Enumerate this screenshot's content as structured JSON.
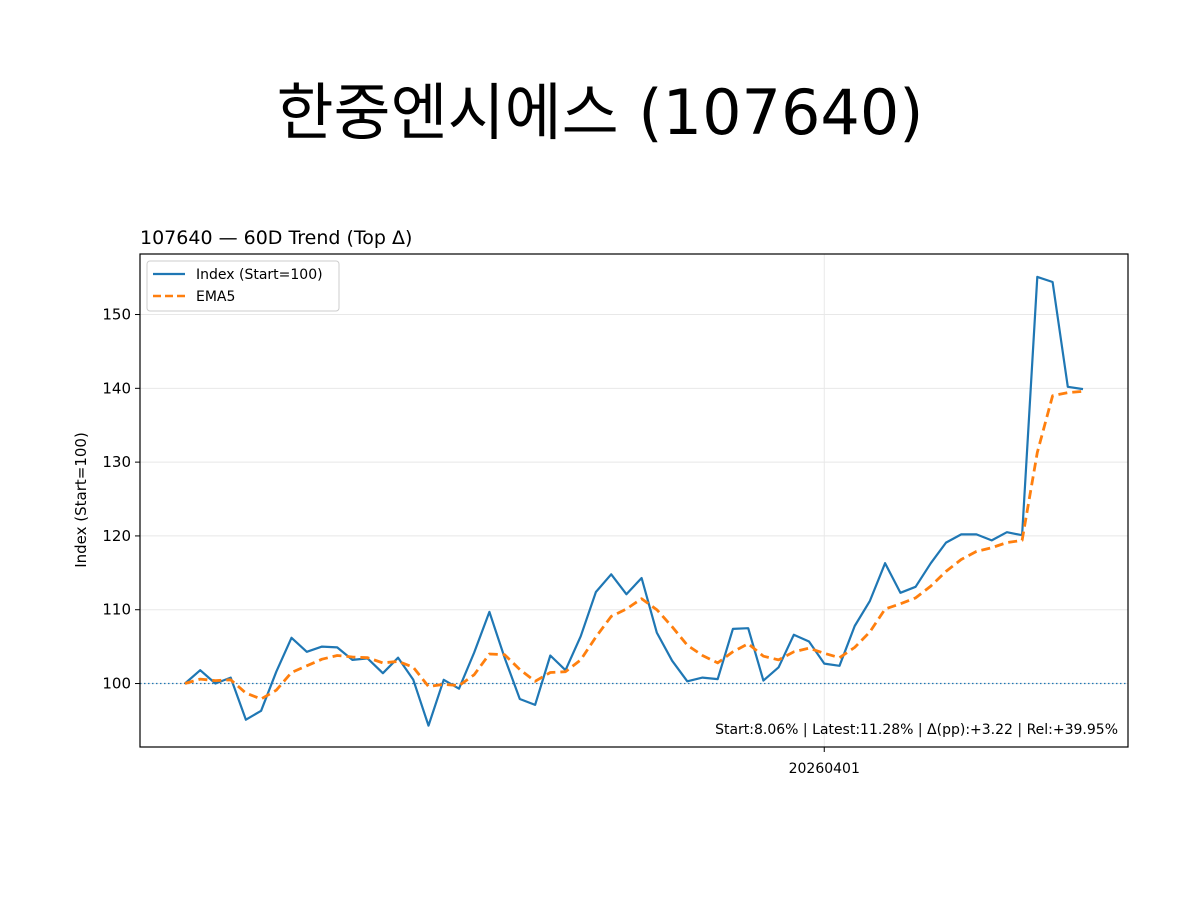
{
  "page": {
    "title": "한중엔시에스 (107640)"
  },
  "chart_data": {
    "type": "line",
    "title": "107640 — 60D Trend (Top Δ)",
    "xlabel": "",
    "ylabel": "Index (Start=100)",
    "ylim": [
      91.4,
      158.2
    ],
    "yticks": [
      100,
      110,
      120,
      130,
      140,
      150
    ],
    "xticks": [
      {
        "index": 42,
        "label": "20260401"
      }
    ],
    "grid": true,
    "legend": "top-left",
    "baseline": 100,
    "annotation": "Start:8.06% | Latest:11.28% | Δ(pp):+3.22 | Rel:+39.95%",
    "series": [
      {
        "name": "Index (Start=100)",
        "color": "#1f77b4",
        "style": "solid",
        "values": [
          100.0,
          101.8,
          100.0,
          100.8,
          95.1,
          96.3,
          101.6,
          106.2,
          104.3,
          105.0,
          104.9,
          103.2,
          103.4,
          101.4,
          103.5,
          100.5,
          94.3,
          100.5,
          99.3,
          104.2,
          109.7,
          103.5,
          97.9,
          97.1,
          103.8,
          101.8,
          106.4,
          112.4,
          114.8,
          112.1,
          114.3,
          106.9,
          103.1,
          100.3,
          100.8,
          100.6,
          107.4,
          107.5,
          100.4,
          102.2,
          106.6,
          105.7,
          102.7,
          102.4,
          107.8,
          111.2,
          116.3,
          112.3,
          113.1,
          116.3,
          119.1,
          120.2,
          120.2,
          119.4,
          120.5,
          120.1,
          155.1,
          154.4,
          140.2,
          139.9
        ]
      },
      {
        "name": "EMA5",
        "color": "#ff7f0e",
        "style": "dashed",
        "values": [
          100.0,
          100.6,
          100.4,
          100.5,
          98.7,
          97.9,
          99.1,
          101.5,
          102.4,
          103.3,
          103.8,
          103.6,
          103.5,
          102.8,
          103.0,
          102.2,
          99.6,
          99.9,
          99.7,
          101.2,
          104.0,
          103.9,
          101.9,
          100.3,
          101.5,
          101.6,
          103.2,
          106.3,
          109.1,
          110.1,
          111.5,
          110.0,
          107.7,
          105.2,
          103.8,
          102.8,
          104.3,
          105.4,
          103.7,
          103.2,
          104.3,
          104.8,
          104.1,
          103.5,
          104.9,
          107.0,
          110.1,
          110.8,
          111.6,
          113.2,
          115.2,
          116.8,
          117.9,
          118.4,
          119.1,
          119.4,
          131.3,
          139.0,
          139.4,
          139.6
        ]
      }
    ]
  }
}
